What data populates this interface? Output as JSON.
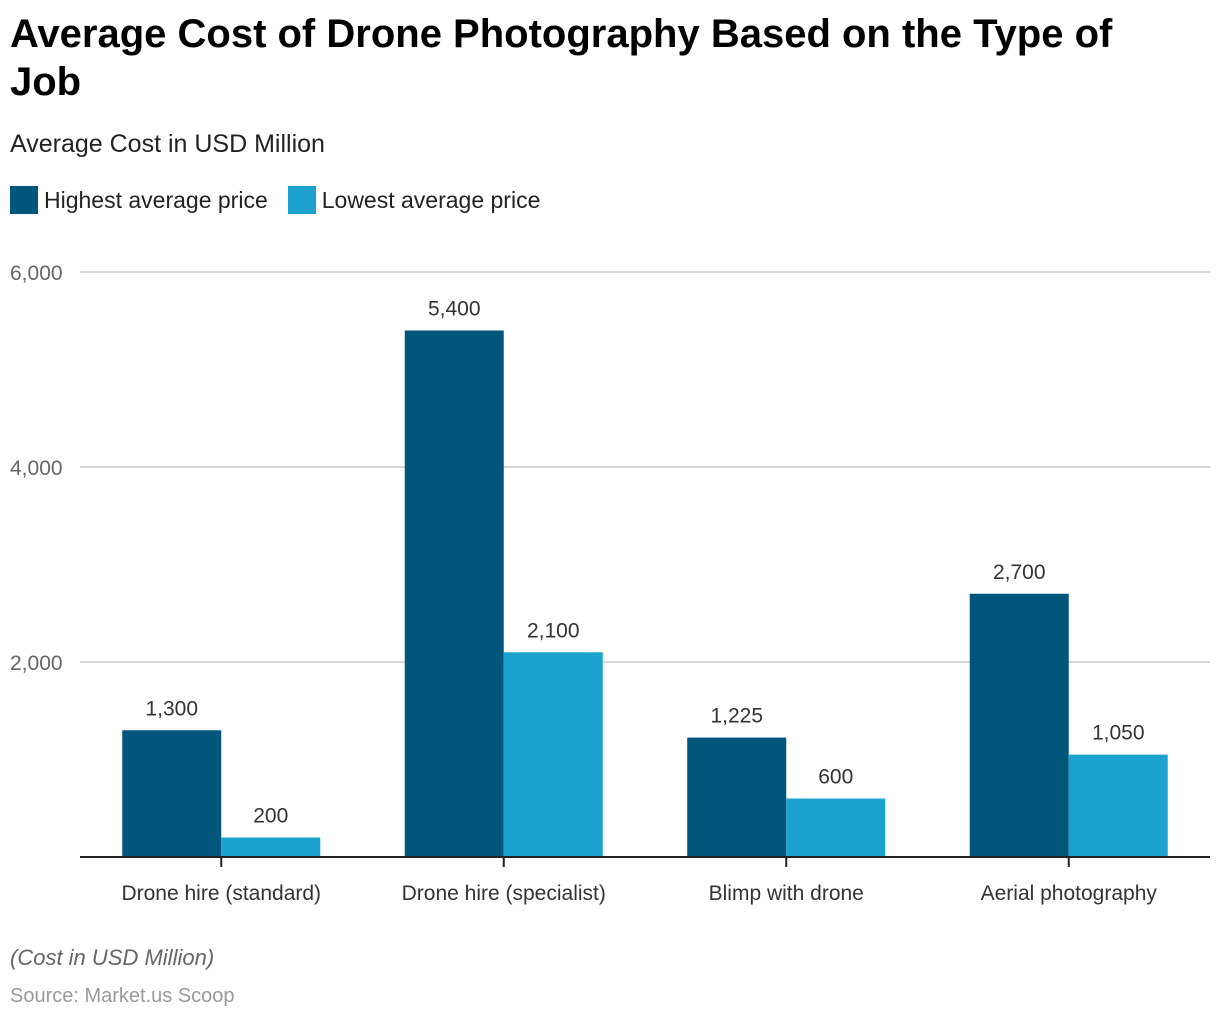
{
  "title": "Average Cost of Drone Photography Based on the Type of Job",
  "subtitle": "Average Cost in USD Million",
  "note": "(Cost in USD Million)",
  "source": "Source: Market.us Scoop",
  "chart_data": {
    "type": "bar",
    "title": "Average Cost of Drone Photography Based on the Type of Job",
    "ylabel": "Average Cost in USD Million",
    "xlabel": "",
    "ylim": [
      0,
      6000
    ],
    "yticks": [
      2000,
      4000,
      6000
    ],
    "ytick_labels": [
      "2,000",
      "4,000",
      "6,000"
    ],
    "grid": true,
    "legend_position": "top-left",
    "categories": [
      "Drone hire (standard)",
      "Drone hire (specialist)",
      "Blimp with drone",
      "Aerial photography"
    ],
    "series": [
      {
        "name": "Highest average price",
        "color": "#02557b",
        "values": [
          1300,
          5400,
          1225,
          2700
        ],
        "labels": [
          "1,300",
          "5,400",
          "1,225",
          "2,700"
        ]
      },
      {
        "name": "Lowest average price",
        "color": "#1ba2cf",
        "values": [
          200,
          2100,
          600,
          1050
        ],
        "labels": [
          "200",
          "2,100",
          "600",
          "1,050"
        ]
      }
    ]
  }
}
